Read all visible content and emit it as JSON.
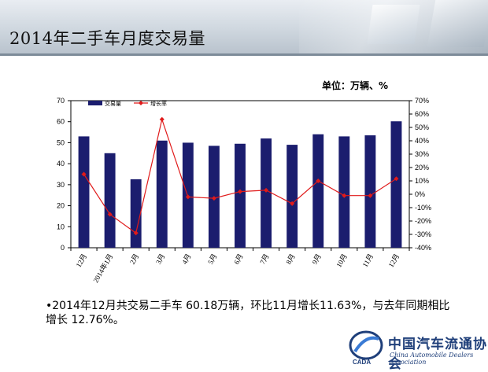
{
  "header": {
    "title": "2014年二手车月度交易量"
  },
  "unit_label": "单位：万辆、%",
  "bullet_text": "•2014年12月共交易二手车 60.18万辆，环比11月增长11.63%，与去年同期相比增长 12.76%。",
  "logo": {
    "cn": "中国汽车流通协会",
    "en": "China Automobile Dealers Association",
    "mark": "CADA"
  },
  "colors": {
    "bar": "#1b1d6e",
    "line": "#e01a1a"
  },
  "chart_data": {
    "type": "bar",
    "categories": [
      "12月",
      "2014年1月",
      "2月",
      "3月",
      "4月",
      "5月",
      "6月",
      "7月",
      "8月",
      "9月",
      "10月",
      "11月",
      "12月"
    ],
    "series": [
      {
        "name": "交易量",
        "type": "bar",
        "axis": "left",
        "values": [
          53.0,
          45.0,
          32.6,
          51.0,
          50.0,
          48.5,
          49.5,
          52.0,
          49.0,
          54.0,
          53.0,
          53.5,
          60.18
        ]
      },
      {
        "name": "增长率",
        "type": "line",
        "axis": "right",
        "values": [
          15,
          -15,
          -29,
          56,
          -2,
          -3,
          2,
          3,
          -7,
          10,
          -1,
          -1,
          11.63
        ]
      }
    ],
    "left_axis": {
      "min": 0,
      "max": 70,
      "step": 10,
      "ticks": [
        "0",
        "10",
        "20",
        "30",
        "40",
        "50",
        "60",
        "70"
      ]
    },
    "right_axis": {
      "min": -40,
      "max": 70,
      "step": 10,
      "ticks": [
        "-40%",
        "-30%",
        "-20%",
        "-10%",
        "0%",
        "10%",
        "20%",
        "30%",
        "40%",
        "50%",
        "60%",
        "70%"
      ]
    },
    "legend_position": "top-left",
    "grid": false
  }
}
